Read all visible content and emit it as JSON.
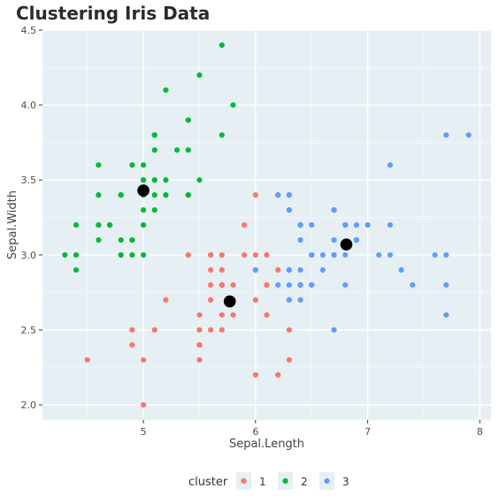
{
  "chart_data": {
    "type": "scatter",
    "title": "Clustering Iris Data",
    "xlabel": "Sepal.Length",
    "ylabel": "Sepal.Width",
    "xlim": [
      4.1,
      8.1
    ],
    "ylim": [
      1.9,
      4.5
    ],
    "xticks": [
      5,
      6,
      7,
      8
    ],
    "yticks": [
      2.0,
      2.5,
      3.0,
      3.5,
      4.0,
      4.5
    ],
    "xtick_labels": [
      "5",
      "6",
      "7",
      "8"
    ],
    "ytick_labels": [
      "2.0",
      "2.5",
      "3.0",
      "3.5",
      "4.0",
      "4.5"
    ],
    "grid": true,
    "legend": {
      "title": "cluster",
      "position": "bottom"
    },
    "series": [
      {
        "name": "1",
        "color": "#F8766D",
        "points": [
          [
            5.4,
            3.0
          ],
          [
            4.9,
            2.5
          ],
          [
            5.8,
            2.7
          ],
          [
            6.0,
            2.2
          ],
          [
            6.0,
            3.4
          ],
          [
            5.9,
            3.0
          ],
          [
            5.5,
            2.3
          ],
          [
            5.8,
            2.7
          ],
          [
            5.7,
            2.8
          ],
          [
            6.1,
            2.8
          ],
          [
            6.0,
            2.9
          ],
          [
            5.6,
            2.9
          ],
          [
            5.6,
            3.0
          ],
          [
            5.8,
            2.7
          ],
          [
            6.2,
            2.2
          ],
          [
            5.6,
            2.5
          ],
          [
            5.9,
            3.2
          ],
          [
            6.1,
            2.8
          ],
          [
            6.3,
            2.5
          ],
          [
            6.1,
            2.8
          ],
          [
            5.7,
            2.6
          ],
          [
            5.5,
            2.4
          ],
          [
            5.5,
            2.4
          ],
          [
            5.8,
            2.7
          ],
          [
            6.0,
            2.7
          ],
          [
            5.4,
            3.0
          ],
          [
            6.3,
            2.3
          ],
          [
            5.6,
            3.0
          ],
          [
            5.5,
            2.5
          ],
          [
            5.5,
            2.6
          ],
          [
            6.1,
            3.0
          ],
          [
            5.8,
            2.6
          ],
          [
            5.0,
            2.3
          ],
          [
            5.6,
            2.7
          ],
          [
            5.7,
            3.0
          ],
          [
            5.7,
            2.9
          ],
          [
            6.2,
            2.9
          ],
          [
            5.1,
            2.5
          ],
          [
            5.7,
            2.8
          ],
          [
            4.9,
            2.4
          ],
          [
            5.2,
            2.7
          ],
          [
            5.0,
            2.0
          ],
          [
            5.6,
            2.8
          ],
          [
            5.8,
            2.8
          ],
          [
            6.3,
            2.7
          ],
          [
            4.5,
            2.3
          ],
          [
            6.0,
            3.0
          ],
          [
            5.7,
            2.5
          ],
          [
            5.8,
            2.7
          ],
          [
            6.1,
            2.6
          ]
        ]
      },
      {
        "name": "2",
        "color": "#00BA38",
        "points": [
          [
            5.1,
            3.5
          ],
          [
            4.9,
            3.0
          ],
          [
            4.7,
            3.2
          ],
          [
            4.6,
            3.1
          ],
          [
            5.0,
            3.6
          ],
          [
            5.4,
            3.9
          ],
          [
            4.6,
            3.4
          ],
          [
            5.0,
            3.4
          ],
          [
            4.4,
            2.9
          ],
          [
            4.9,
            3.1
          ],
          [
            5.4,
            3.7
          ],
          [
            4.8,
            3.4
          ],
          [
            4.8,
            3.0
          ],
          [
            4.3,
            3.0
          ],
          [
            5.8,
            4.0
          ],
          [
            5.7,
            4.4
          ],
          [
            5.4,
            3.9
          ],
          [
            5.1,
            3.5
          ],
          [
            5.7,
            3.8
          ],
          [
            5.1,
            3.8
          ],
          [
            5.4,
            3.4
          ],
          [
            5.1,
            3.7
          ],
          [
            4.6,
            3.6
          ],
          [
            5.1,
            3.3
          ],
          [
            4.8,
            3.4
          ],
          [
            5.0,
            3.0
          ],
          [
            5.0,
            3.4
          ],
          [
            5.2,
            3.5
          ],
          [
            5.2,
            3.4
          ],
          [
            4.7,
            3.2
          ],
          [
            4.8,
            3.1
          ],
          [
            5.4,
            3.4
          ],
          [
            5.2,
            4.1
          ],
          [
            5.5,
            4.2
          ],
          [
            4.9,
            3.1
          ],
          [
            5.0,
            3.2
          ],
          [
            5.5,
            3.5
          ],
          [
            4.9,
            3.6
          ],
          [
            4.4,
            3.0
          ],
          [
            5.1,
            3.4
          ],
          [
            5.0,
            3.5
          ],
          [
            4.4,
            3.2
          ],
          [
            5.0,
            3.5
          ],
          [
            5.1,
            3.8
          ],
          [
            4.8,
            3.0
          ],
          [
            5.1,
            3.8
          ],
          [
            4.6,
            3.2
          ],
          [
            5.3,
            3.7
          ],
          [
            5.0,
            3.3
          ]
        ]
      },
      {
        "name": "3",
        "color": "#619CFF",
        "points": [
          [
            7.0,
            3.2
          ],
          [
            6.4,
            3.2
          ],
          [
            6.9,
            3.1
          ],
          [
            6.5,
            2.8
          ],
          [
            6.3,
            3.3
          ],
          [
            6.6,
            2.9
          ],
          [
            6.7,
            3.1
          ],
          [
            6.2,
            3.4
          ],
          [
            6.4,
            2.9
          ],
          [
            6.6,
            3.0
          ],
          [
            6.8,
            2.8
          ],
          [
            6.7,
            3.0
          ],
          [
            6.3,
            3.4
          ],
          [
            6.7,
            3.1
          ],
          [
            6.9,
            3.1
          ],
          [
            6.8,
            3.2
          ],
          [
            6.7,
            3.3
          ],
          [
            6.7,
            3.0
          ],
          [
            6.5,
            3.0
          ],
          [
            6.2,
            3.4
          ],
          [
            7.1,
            3.0
          ],
          [
            6.3,
            2.9
          ],
          [
            6.5,
            3.0
          ],
          [
            7.6,
            3.0
          ],
          [
            7.3,
            2.9
          ],
          [
            6.7,
            2.5
          ],
          [
            7.2,
            3.6
          ],
          [
            6.5,
            3.2
          ],
          [
            6.4,
            2.7
          ],
          [
            6.8,
            3.0
          ],
          [
            6.4,
            3.2
          ],
          [
            6.5,
            3.0
          ],
          [
            7.7,
            3.8
          ],
          [
            7.7,
            2.6
          ],
          [
            6.9,
            3.2
          ],
          [
            7.7,
            2.8
          ],
          [
            6.3,
            2.7
          ],
          [
            6.7,
            3.3
          ],
          [
            7.2,
            3.2
          ],
          [
            6.4,
            2.8
          ],
          [
            7.2,
            3.0
          ],
          [
            7.4,
            2.8
          ],
          [
            7.9,
            3.8
          ],
          [
            6.4,
            2.8
          ],
          [
            7.7,
            3.0
          ],
          [
            6.3,
            3.4
          ],
          [
            6.4,
            3.1
          ],
          [
            6.9,
            3.1
          ],
          [
            6.8,
            3.2
          ],
          [
            6.9,
            3.1
          ],
          [
            6.7,
            3.3
          ],
          [
            6.4,
            2.8
          ],
          [
            6.3,
            2.8
          ],
          [
            6.2,
            2.8
          ],
          [
            6.0,
            2.9
          ],
          [
            6.3,
            3.3
          ],
          [
            6.3,
            2.9
          ],
          [
            6.4,
            3.2
          ],
          [
            6.2,
            3.4
          ],
          [
            6.5,
            2.8
          ]
        ]
      }
    ],
    "centroids": {
      "color": "#000000",
      "points": [
        [
          5.77,
          2.69
        ],
        [
          5.0,
          3.43
        ],
        [
          6.81,
          3.07
        ]
      ]
    }
  }
}
